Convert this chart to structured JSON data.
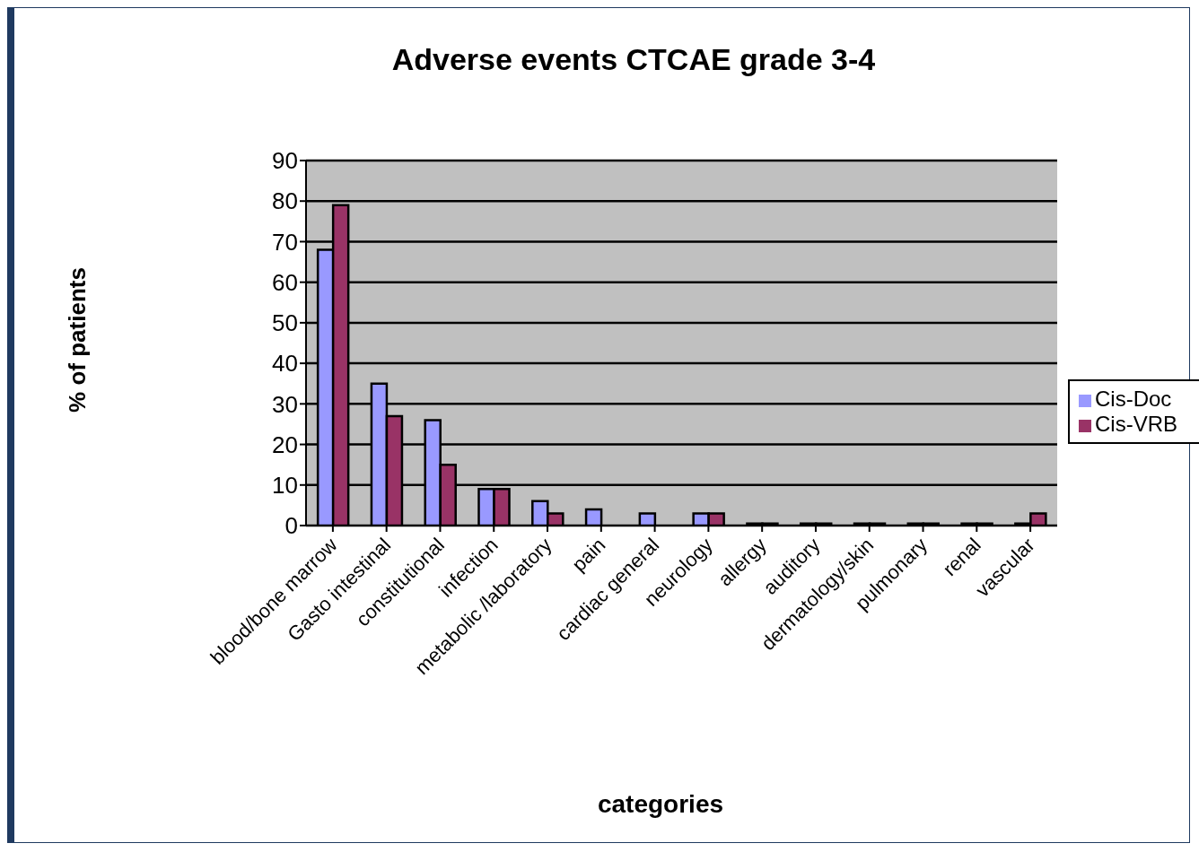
{
  "chart_data": {
    "type": "bar",
    "title": "Adverse events CTCAE grade 3-4",
    "xlabel": "categories",
    "ylabel": "% of patients",
    "categories": [
      "blood/bone marrow",
      "Gasto intestinal",
      "constitutional",
      "infection",
      "metabolic /laboratory",
      "pain",
      "cardiac general",
      "neurology",
      "allergy",
      "auditory",
      "dermatology/skin",
      "pulmonary",
      "renal",
      "vascular"
    ],
    "series": [
      {
        "name": "Cis-Doc",
        "color": "#9999ff",
        "values": [
          68,
          35,
          26,
          9,
          6,
          4,
          3,
          3,
          0.5,
          0.5,
          0.5,
          0.5,
          0.5,
          0.5
        ]
      },
      {
        "name": "Cis-VRB",
        "color": "#993366",
        "values": [
          79,
          27,
          15,
          9,
          3,
          0,
          0,
          3,
          0.5,
          0.5,
          0.5,
          0.5,
          0.5,
          3
        ]
      }
    ],
    "ylim": [
      0,
      90
    ],
    "yticks": [
      0,
      10,
      20,
      30,
      40,
      50,
      60,
      70,
      80,
      90
    ],
    "grid": "y",
    "legend": "right"
  }
}
